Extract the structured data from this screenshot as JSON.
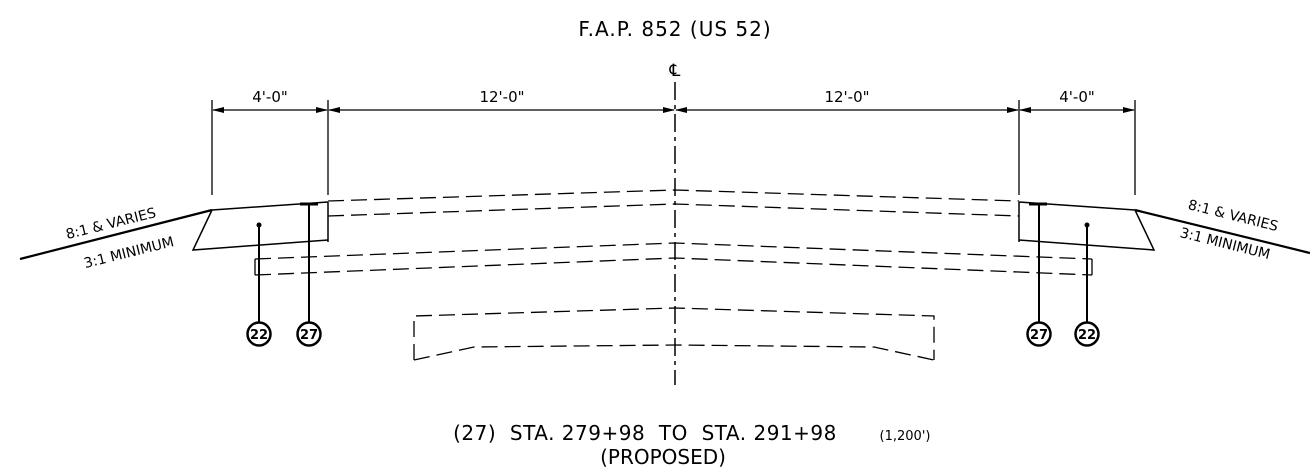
{
  "title": "F.A.P. 852 (US 52)",
  "centerline_symbol": "℄",
  "dimensions": {
    "left_shoulder": "4'-0\"",
    "left_lane": "12'-0\"",
    "right_lane": "12'-0\"",
    "right_shoulder": "4'-0\""
  },
  "slopes": {
    "left_top": "8:1 & VARIES",
    "left_bottom": "3:1 MINIMUM",
    "right_top": "8:1 & VARIES",
    "right_bottom": "3:1 MINIMUM"
  },
  "callouts": {
    "left_outer": "22",
    "left_inner": "27",
    "right_inner": "27",
    "right_outer": "22"
  },
  "caption": {
    "main": "(27)  STA. 279+98  TO  STA. 291+98",
    "length": "(1,200')",
    "sub": "(PROPOSED)"
  }
}
